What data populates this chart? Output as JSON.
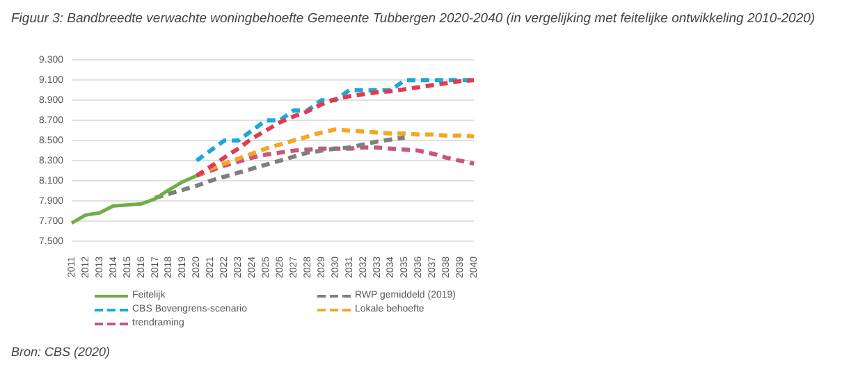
{
  "chart_data": {
    "type": "line",
    "title": "Figuur 3: Bandbreedte verwachte woningbehoefte Gemeente Tubbergen 2020-2040 (in vergelijking met feitelijke ontwikkeling 2010-2020)",
    "categories": [
      "2011",
      "2012",
      "2013",
      "2014",
      "2015",
      "2016",
      "2017",
      "2018",
      "2019",
      "2020",
      "2021",
      "2022",
      "2023",
      "2024",
      "2025",
      "2026",
      "2027",
      "2028",
      "2029",
      "2030",
      "2031",
      "2032",
      "2033",
      "2034",
      "2035",
      "2036",
      "2037",
      "2038",
      "2039",
      "2040"
    ],
    "ylim": [
      7500,
      9300
    ],
    "yticks": [
      {
        "value": 7500,
        "label": "7.500"
      },
      {
        "value": 7700,
        "label": "7.700"
      },
      {
        "value": 7900,
        "label": "7.900"
      },
      {
        "value": 8100,
        "label": "8.100"
      },
      {
        "value": 8300,
        "label": "8.300"
      },
      {
        "value": 8500,
        "label": "8.500"
      },
      {
        "value": 8700,
        "label": "8.700"
      },
      {
        "value": 8900,
        "label": "8.900"
      },
      {
        "value": 9100,
        "label": "9.100"
      },
      {
        "value": 9300,
        "label": "9.300"
      }
    ],
    "grid": "y",
    "legend": "bottom",
    "marker": "none",
    "series": [
      {
        "name": "Feitelijk",
        "color": "#70ad47",
        "line_style": "solid",
        "values": [
          7680,
          7760,
          7780,
          7850,
          7860,
          7870,
          7920,
          8010,
          8090,
          8150,
          null,
          null,
          null,
          null,
          null,
          null,
          null,
          null,
          null,
          null,
          null,
          null,
          null,
          null,
          null,
          null,
          null,
          null,
          null,
          null
        ]
      },
      {
        "color": "#e03c50",
        "line_style": "dashed",
        "values": [
          null,
          null,
          null,
          null,
          null,
          null,
          null,
          null,
          null,
          8150,
          8240,
          8330,
          8420,
          8520,
          8600,
          8680,
          8740,
          8790,
          8860,
          8910,
          8940,
          8960,
          8980,
          8990,
          9010,
          9030,
          9050,
          9070,
          9090,
          9100
        ]
      },
      {
        "name": "RWP gemiddeld (2019)",
        "color": "#7f7f7f",
        "line_style": "dashed",
        "values": [
          null,
          null,
          null,
          null,
          null,
          null,
          7930,
          7970,
          8010,
          8050,
          8100,
          8140,
          8180,
          8220,
          8260,
          8300,
          8340,
          8380,
          8400,
          8420,
          8430,
          8460,
          8490,
          8510,
          8530,
          null,
          null,
          null,
          null,
          null
        ]
      },
      {
        "name": "CBS Bovengrens-scenario",
        "color": "#1ea7d8",
        "line_style": "dashed",
        "values": [
          null,
          null,
          null,
          null,
          null,
          null,
          null,
          null,
          null,
          8300,
          8400,
          8500,
          8500,
          8600,
          8700,
          8700,
          8800,
          8800,
          8900,
          8900,
          9000,
          9000,
          9000,
          9000,
          9100,
          9100,
          9100,
          9100,
          9100,
          9100
        ]
      },
      {
        "name": "Lokale behoefte",
        "color": "#f5a623",
        "line_style": "dashed",
        "values": [
          null,
          null,
          null,
          null,
          null,
          null,
          null,
          null,
          null,
          8150,
          8220,
          8270,
          8320,
          8370,
          8420,
          8460,
          8500,
          8540,
          8580,
          8610,
          8600,
          8590,
          8580,
          8570,
          8570,
          8560,
          8560,
          8550,
          8550,
          8540
        ]
      },
      {
        "name": "trendraming",
        "color": "#c9577a",
        "line_style": "dashed",
        "values": [
          null,
          null,
          null,
          null,
          null,
          null,
          null,
          null,
          null,
          8150,
          8200,
          8250,
          8290,
          8330,
          8360,
          8380,
          8400,
          8410,
          8420,
          8420,
          8420,
          8430,
          8430,
          8420,
          8410,
          8400,
          8370,
          8330,
          8300,
          8270
        ]
      }
    ],
    "annotations": [
      "Bron: CBS (2020)"
    ]
  }
}
